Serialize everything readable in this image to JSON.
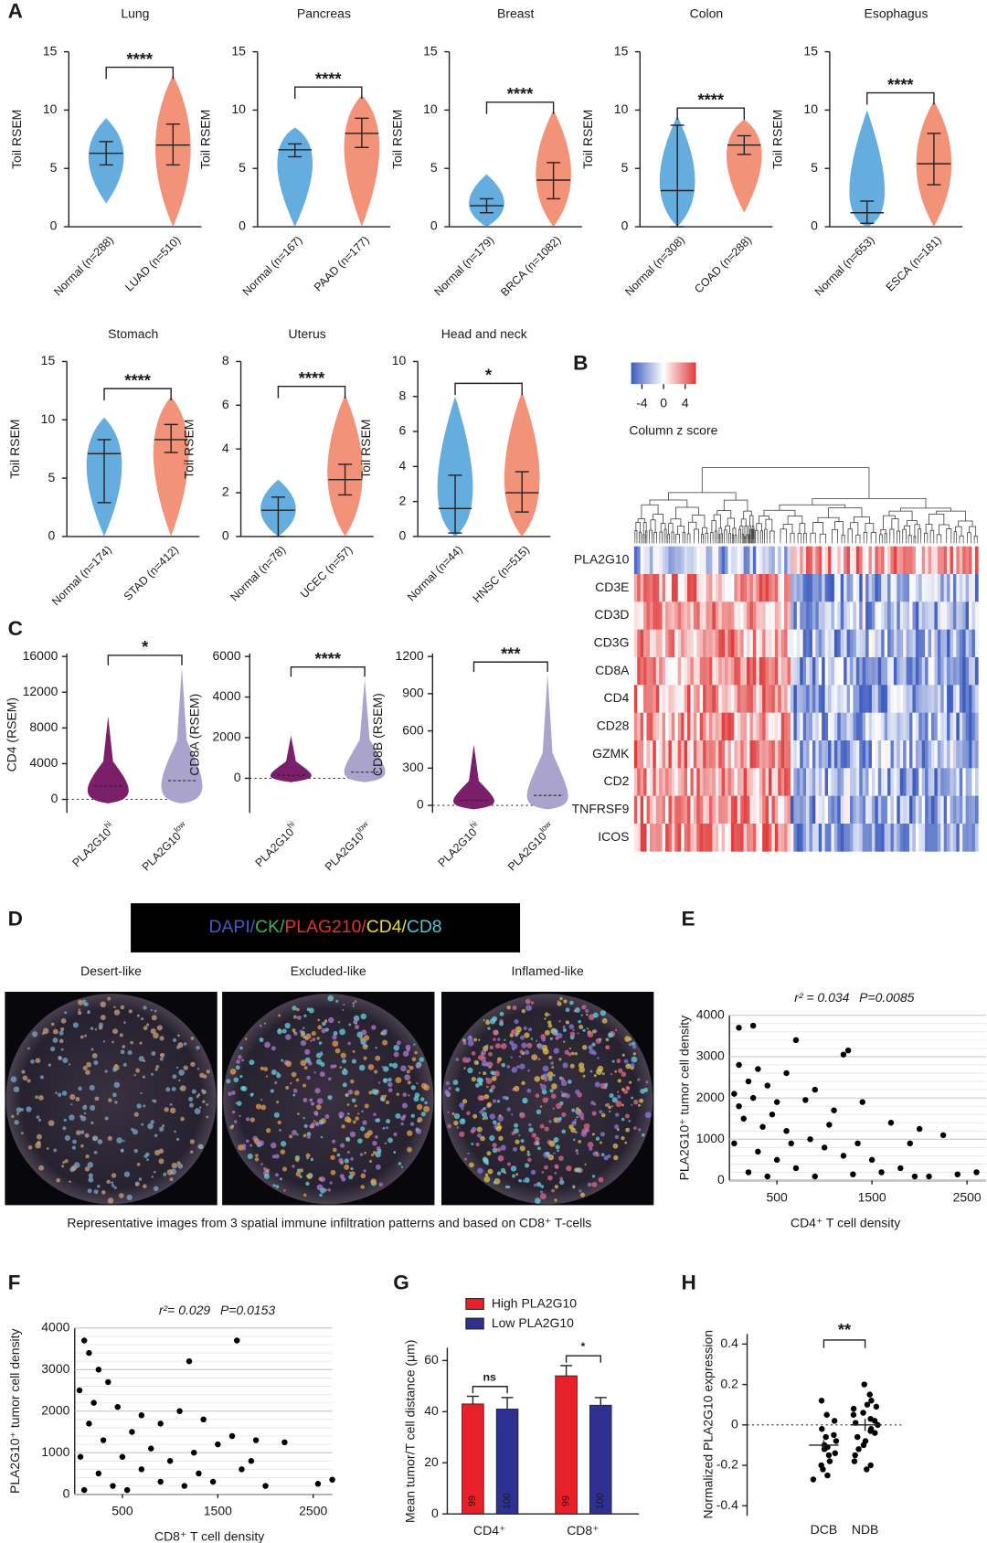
{
  "panel_labels": [
    "A",
    "B",
    "C",
    "D",
    "E",
    "F",
    "G",
    "H"
  ],
  "panels": {
    "A": {
      "ylabel": "Toil RSEM",
      "colors": [
        "#4a9fd8",
        "#f07f62"
      ],
      "plots": [
        {
          "title": "Lung",
          "ylim": [
            0,
            15
          ],
          "yticks": [
            0,
            5,
            10,
            15
          ],
          "sig": "****",
          "groups": [
            {
              "name": "Normal (n=288)",
              "median": 6.3,
              "low": 5.3,
              "high": 7.3,
              "min": 2,
              "max": 9.3
            },
            {
              "name": "LUAD (n=510)",
              "median": 7,
              "low": 5.3,
              "high": 8.8,
              "min": 0,
              "max": 13
            }
          ]
        },
        {
          "title": "Pancreas",
          "ylim": [
            0,
            15
          ],
          "yticks": [
            0,
            5,
            10,
            15
          ],
          "sig": "****",
          "groups": [
            {
              "name": "Normal (n=167)",
              "median": 6.6,
              "low": 6,
              "high": 7.1,
              "min": 0,
              "max": 8.5
            },
            {
              "name": "PAAD (n=177)",
              "median": 8,
              "low": 6.8,
              "high": 9.3,
              "min": 0,
              "max": 11.3
            }
          ]
        },
        {
          "title": "Breast",
          "ylim": [
            0,
            15
          ],
          "yticks": [
            0,
            5,
            10,
            15
          ],
          "sig": "****",
          "groups": [
            {
              "name": "Normal (n=179)",
              "median": 1.8,
              "low": 1.2,
              "high": 2.4,
              "min": 0,
              "max": 4.5
            },
            {
              "name": "BRCA (n=1082)",
              "median": 4,
              "low": 2.4,
              "high": 5.5,
              "min": 0,
              "max": 10
            }
          ]
        },
        {
          "title": "Colon",
          "ylim": [
            0,
            15
          ],
          "yticks": [
            0,
            5,
            10,
            15
          ],
          "sig": "****",
          "groups": [
            {
              "name": "Normal (n=308)",
              "median": 3.1,
              "low": 0,
              "high": 8.7,
              "min": 0,
              "max": 9.5
            },
            {
              "name": "COAD (n=288)",
              "median": 7,
              "low": 6.2,
              "high": 7.8,
              "min": 1.2,
              "max": 9.2
            }
          ]
        },
        {
          "title": "Esophagus",
          "ylim": [
            0,
            15
          ],
          "yticks": [
            0,
            5,
            10,
            15
          ],
          "sig": "****",
          "groups": [
            {
              "name": "Normal (n=653)",
              "median": 1.2,
              "low": 0.3,
              "high": 2.2,
              "min": 0,
              "max": 10
            },
            {
              "name": "ESCA (n=181)",
              "median": 5.4,
              "low": 3.6,
              "high": 8,
              "min": 0,
              "max": 10.8
            }
          ]
        },
        {
          "title": "Stomach",
          "ylim": [
            0,
            15
          ],
          "yticks": [
            0,
            5,
            10,
            15
          ],
          "sig": "****",
          "groups": [
            {
              "name": "Normal (n=174)",
              "median": 7.1,
              "low": 2.9,
              "high": 8.3,
              "min": 0,
              "max": 10.2
            },
            {
              "name": "STAD (n=412)",
              "median": 8.3,
              "low": 7.2,
              "high": 9.6,
              "min": 0,
              "max": 12
            }
          ]
        },
        {
          "title": "Uterus",
          "ylim": [
            0,
            8
          ],
          "yticks": [
            0,
            2,
            4,
            6,
            8
          ],
          "sig": "****",
          "groups": [
            {
              "name": "Normal (n=78)",
              "median": 1.2,
              "low": 0,
              "high": 1.8,
              "min": 0,
              "max": 2.6
            },
            {
              "name": "UCEC (n=57)",
              "median": 2.6,
              "low": 1.9,
              "high": 3.3,
              "min": 0,
              "max": 6.5
            }
          ]
        },
        {
          "title": "Head and neck",
          "ylim": [
            0,
            10
          ],
          "yticks": [
            0,
            2,
            4,
            6,
            8,
            10
          ],
          "sig": "*",
          "groups": [
            {
              "name": "Normal (n=44)",
              "median": 1.6,
              "low": 0.2,
              "high": 3.5,
              "min": 0,
              "max": 8
            },
            {
              "name": "HNSC (n=515)",
              "median": 2.5,
              "low": 1.4,
              "high": 3.7,
              "min": 0,
              "max": 8.3
            }
          ]
        }
      ]
    },
    "B": {
      "zlim": [
        -6,
        6
      ],
      "zticks": [
        -4,
        0,
        4
      ],
      "legend_title": "Column z score",
      "genes": [
        "PLA2G10",
        "CD3E",
        "CD3D",
        "CD3G",
        "CD8A",
        "CD4",
        "CD28",
        "GZMK",
        "CD2",
        "TNFRSF9",
        "ICOS"
      ]
    },
    "C": {
      "colors": [
        "#7b1f6b",
        "#aaa4cc"
      ],
      "plots": [
        {
          "ylabel": "CD4 (RSEM)",
          "ylim": [
            -1500,
            16000
          ],
          "yticks": [
            0,
            4000,
            8000,
            12000,
            16000
          ],
          "sig": "*",
          "groups": [
            {
              "name": "PLA2G10",
              "sup": "hi",
              "median": 1500,
              "min": 0,
              "max": 9300
            },
            {
              "name": "PLA2G10",
              "sup": "low",
              "median": 2100,
              "min": 0,
              "max": 14800
            }
          ]
        },
        {
          "ylabel": "CD8A (RSEM)",
          "ylim": [
            -1700,
            6000
          ],
          "yticks": [
            0,
            2000,
            4000,
            6000
          ],
          "sig": "****",
          "groups": [
            {
              "name": "PLA2G10",
              "sup": "hi",
              "median": 150,
              "min": 0,
              "max": 2100
            },
            {
              "name": "PLA2G10",
              "sup": "low",
              "median": 300,
              "min": 0,
              "max": 4900
            }
          ]
        },
        {
          "ylabel": "CD8B (RSEM)",
          "ylim": [
            -60,
            1200
          ],
          "yticks": [
            0,
            300,
            600,
            900,
            1200
          ],
          "sig": "***",
          "groups": [
            {
              "name": "PLA2G10",
              "sup": "hi",
              "median": 40,
              "min": 0,
              "max": 490
            },
            {
              "name": "PLA2G10",
              "sup": "low",
              "median": 80,
              "min": 0,
              "max": 1060
            }
          ]
        }
      ]
    },
    "D": {
      "legend": [
        {
          "text": "DAPI/",
          "color": "#4656d0"
        },
        {
          "text": "CK/",
          "color": "#3cb44b"
        },
        {
          "text": "PLAG210/",
          "color": "#e8302a"
        },
        {
          "text": "CD4/",
          "color": "#e8d84a"
        },
        {
          "text": "CD8",
          "color": "#5cc0d8"
        }
      ],
      "images": [
        "Desert-like",
        "Excluded-like",
        "Inflamed-like"
      ],
      "caption": "Representative images from 3 spatial immune infiltration patterns and based on CD8⁺ T-cells"
    },
    "E": {
      "stat_r": "r² = 0.034",
      "stat_p": "P=0.0085",
      "ylabel": "PLA2G10⁺ tumor cell density",
      "xlabel": "CD4⁺ T cell density",
      "xlim": [
        0,
        2700
      ],
      "ylim": [
        0,
        4000
      ],
      "xticks": [
        500,
        1500,
        2500
      ],
      "yticks": [
        0,
        1000,
        2000,
        3000,
        4000
      ],
      "grid": true,
      "x": [
        100,
        250,
        700,
        1250,
        1200,
        100,
        300,
        200,
        400,
        600,
        900,
        50,
        250,
        500,
        800,
        1100,
        1400,
        1700,
        2000,
        2250,
        1900,
        2400,
        2600,
        2100,
        150,
        350,
        600,
        850,
        1000,
        1200,
        1500,
        1800,
        50,
        300,
        500,
        700,
        900,
        1300,
        1600,
        200,
        400,
        100,
        450,
        650,
        1050,
        1350,
        1950
      ],
      "y": [
        3700,
        3750,
        3400,
        3150,
        3050,
        2800,
        2700,
        2400,
        2300,
        2600,
        2200,
        2100,
        2000,
        1900,
        1950,
        1700,
        1900,
        1400,
        1250,
        1100,
        900,
        150,
        200,
        100,
        1500,
        1300,
        1200,
        1000,
        800,
        600,
        500,
        300,
        900,
        700,
        500,
        300,
        100,
        150,
        200,
        200,
        100,
        1800,
        1600,
        900,
        1350,
        900,
        100
      ]
    },
    "F": {
      "stat_r": "r²= 0.029",
      "stat_p": "P=0.0153",
      "ylabel": "PLA2G10⁺ tumor cell density",
      "xlabel": "CD8⁺ T cell density",
      "xlim": [
        0,
        2700
      ],
      "ylim": [
        0,
        4000
      ],
      "xticks": [
        500,
        1500,
        2500
      ],
      "yticks": [
        0,
        1000,
        2000,
        3000,
        4000
      ],
      "grid": true,
      "x": [
        100,
        1700,
        1200,
        150,
        250,
        350,
        50,
        200,
        450,
        700,
        900,
        1100,
        1350,
        1650,
        1900,
        2200,
        2550,
        2700,
        1500,
        1750,
        2000,
        1300,
        1000,
        800,
        600,
        150,
        300,
        500,
        700,
        900,
        1150,
        1450,
        60,
        250,
        400,
        100,
        550,
        1250,
        1850
      ],
      "y": [
        3700,
        3700,
        3200,
        3400,
        3000,
        2700,
        2500,
        2200,
        2100,
        1900,
        1700,
        2000,
        1800,
        1400,
        1300,
        1250,
        250,
        350,
        1200,
        600,
        200,
        500,
        800,
        1100,
        1500,
        1700,
        1300,
        900,
        600,
        300,
        200,
        300,
        900,
        500,
        200,
        100,
        100,
        1000,
        800
      ]
    },
    "G": {
      "ylabel": "Mean tumor/T cell distance (μm)",
      "ylim": [
        0,
        65
      ],
      "yticks": [
        0,
        20,
        40,
        60
      ],
      "categories": [
        "CD4⁺",
        "CD8⁺"
      ],
      "sig": [
        "ns",
        "*"
      ],
      "series": [
        {
          "name": "High  PLA2G10",
          "color": "#e8202a",
          "values": [
            43,
            54
          ],
          "errors": [
            3,
            4
          ],
          "n": [
            "99",
            "99"
          ]
        },
        {
          "name": "Low  PLA2G10",
          "color": "#2e3192",
          "values": [
            41,
            42.5
          ],
          "errors": [
            4.5,
            3
          ],
          "n": [
            "100",
            "100"
          ]
        }
      ]
    },
    "H": {
      "ylabel": "Normalized PLA2G10 expression",
      "ylim": [
        -0.45,
        0.45
      ],
      "yticks": [
        -0.4,
        -0.2,
        0,
        0.2,
        0.4
      ],
      "sig": "**",
      "groups": [
        {
          "name": "DCB",
          "mean": -0.1,
          "sem": 0.025,
          "points": [
            -0.12,
            -0.1,
            -0.08,
            -0.05,
            -0.02,
            0.02,
            0.05,
            0.12,
            -0.15,
            -0.18,
            -0.2,
            -0.22,
            -0.25,
            -0.27,
            -0.14,
            -0.06,
            -0.11
          ]
        },
        {
          "name": "NDB",
          "mean": 0,
          "sem": 0.03,
          "points": [
            0.2,
            0.15,
            0.12,
            0.1,
            0.08,
            0.05,
            0.03,
            0.01,
            0,
            -0.02,
            -0.04,
            -0.06,
            -0.08,
            -0.1,
            -0.12,
            -0.15,
            -0.18,
            -0.2,
            -0.22,
            0.06,
            0.09,
            0.02,
            -0.03
          ]
        }
      ]
    }
  }
}
